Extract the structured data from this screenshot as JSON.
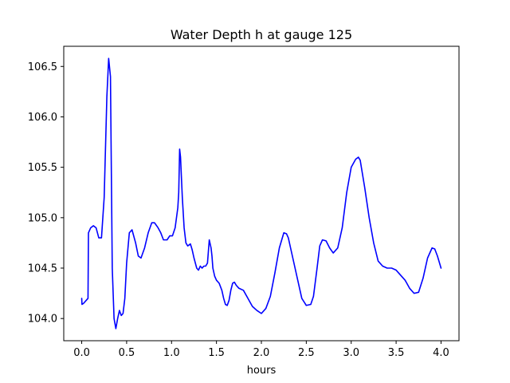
{
  "chart_data": {
    "type": "line",
    "title": "Water Depth h at gauge 125",
    "xlabel": "hours",
    "ylabel": "",
    "xlim": [
      -0.2,
      4.2
    ],
    "ylim": [
      103.78,
      106.7
    ],
    "xticks": [
      0.0,
      0.5,
      1.0,
      1.5,
      2.0,
      2.5,
      3.0,
      3.5,
      4.0
    ],
    "xtick_labels": [
      "0.0",
      "0.5",
      "1.0",
      "1.5",
      "2.0",
      "2.5",
      "3.0",
      "3.5",
      "4.0"
    ],
    "yticks": [
      104.0,
      104.5,
      105.0,
      105.5,
      106.0,
      106.5
    ],
    "ytick_labels": [
      "104.0",
      "104.5",
      "105.0",
      "105.5",
      "106.0",
      "106.5"
    ],
    "grid": false,
    "series": [
      {
        "color": "#0000ff",
        "x": [
          0.0,
          0.003,
          0.02,
          0.05,
          0.07,
          0.075,
          0.1,
          0.13,
          0.16,
          0.19,
          0.22,
          0.25,
          0.28,
          0.3,
          0.32,
          0.34,
          0.36,
          0.38,
          0.4,
          0.42,
          0.44,
          0.46,
          0.48,
          0.5,
          0.53,
          0.56,
          0.6,
          0.63,
          0.66,
          0.7,
          0.74,
          0.78,
          0.81,
          0.85,
          0.88,
          0.91,
          0.95,
          0.98,
          1.01,
          1.04,
          1.07,
          1.08,
          1.09,
          1.1,
          1.11,
          1.12,
          1.14,
          1.16,
          1.18,
          1.21,
          1.23,
          1.25,
          1.28,
          1.3,
          1.32,
          1.34,
          1.36,
          1.38,
          1.4,
          1.42,
          1.44,
          1.45,
          1.46,
          1.48,
          1.5,
          1.53,
          1.56,
          1.58,
          1.6,
          1.62,
          1.64,
          1.66,
          1.68,
          1.7,
          1.72,
          1.75,
          1.8,
          1.85,
          1.9,
          1.95,
          2.0,
          2.05,
          2.1,
          2.15,
          2.2,
          2.25,
          2.28,
          2.3,
          2.35,
          2.4,
          2.45,
          2.5,
          2.55,
          2.58,
          2.62,
          2.65,
          2.68,
          2.72,
          2.76,
          2.8,
          2.85,
          2.9,
          2.95,
          3.0,
          3.05,
          3.08,
          3.1,
          3.15,
          3.2,
          3.25,
          3.3,
          3.35,
          3.4,
          3.45,
          3.5,
          3.6,
          3.65,
          3.7,
          3.75,
          3.8,
          3.85,
          3.9,
          3.93,
          3.96,
          4.0
        ],
        "y": [
          104.2,
          104.14,
          104.15,
          104.18,
          104.2,
          104.85,
          104.9,
          104.92,
          104.9,
          104.8,
          104.8,
          105.2,
          106.2,
          106.58,
          106.4,
          104.5,
          104.0,
          103.9,
          104.0,
          104.08,
          104.03,
          104.05,
          104.2,
          104.55,
          104.85,
          104.88,
          104.75,
          104.62,
          104.6,
          104.7,
          104.85,
          104.95,
          104.95,
          104.9,
          104.85,
          104.78,
          104.78,
          104.82,
          104.82,
          104.9,
          105.1,
          105.25,
          105.68,
          105.6,
          105.4,
          105.2,
          104.9,
          104.75,
          104.72,
          104.74,
          104.68,
          104.6,
          104.5,
          104.48,
          104.52,
          104.5,
          104.52,
          104.52,
          104.55,
          104.78,
          104.7,
          104.62,
          104.5,
          104.42,
          104.38,
          104.35,
          104.28,
          104.2,
          104.14,
          104.13,
          104.18,
          104.28,
          104.35,
          104.36,
          104.33,
          104.3,
          104.28,
          104.2,
          104.12,
          104.08,
          104.05,
          104.1,
          104.22,
          104.45,
          104.7,
          104.85,
          104.84,
          104.8,
          104.6,
          104.4,
          104.2,
          104.13,
          104.14,
          104.22,
          104.5,
          104.72,
          104.78,
          104.77,
          104.7,
          104.65,
          104.7,
          104.9,
          105.25,
          105.5,
          105.58,
          105.6,
          105.57,
          105.3,
          105.0,
          104.75,
          104.57,
          104.52,
          104.5,
          104.5,
          104.48,
          104.38,
          104.3,
          104.25,
          104.26,
          104.4,
          104.6,
          104.7,
          104.69,
          104.62,
          104.5
        ]
      }
    ]
  }
}
